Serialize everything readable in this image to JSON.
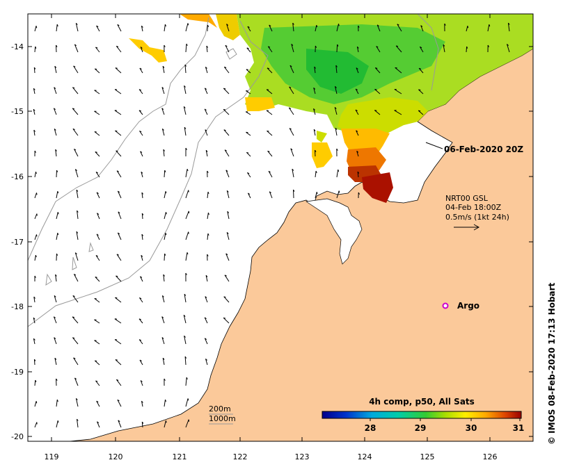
{
  "map": {
    "y_ticks": [
      "-14",
      "-15",
      "-16",
      "-17",
      "-18",
      "-19",
      "-20"
    ],
    "x_ticks": [
      "119",
      "120",
      "121",
      "122",
      "123",
      "124",
      "125",
      "126"
    ],
    "timestamp_label": "06-Feb-2020 20Z",
    "current_legend": {
      "line1": "NRT00 GSL",
      "line2": "04-Feb 18:00Z",
      "line3": "0.5m/s (1kt 24h)"
    },
    "argo_label": "Argo",
    "isobaths": {
      "line1": "200m",
      "line2": "1000m"
    },
    "colorbar": {
      "title": "4h comp, p50, All Sats",
      "ticks": [
        "28",
        "29",
        "30",
        "31"
      ]
    },
    "credit": "© IMOS 08-Feb-2020 17:13 Hobart",
    "colors": {
      "land": "#fbc99a",
      "ocean_background": "#ffffff",
      "argo_marker": "#cc00cc"
    }
  }
}
